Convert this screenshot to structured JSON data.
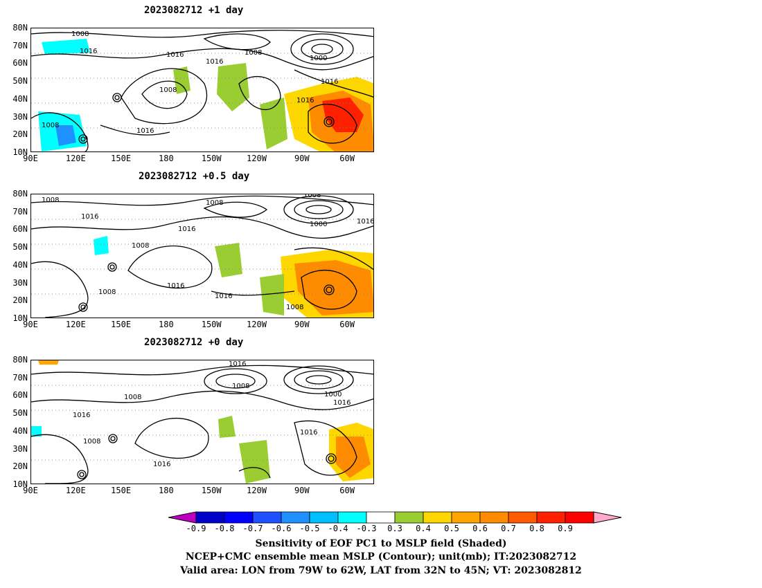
{
  "panels": [
    {
      "title": "2023082712 +1 day"
    },
    {
      "title": "2023082712 +0.5 day"
    },
    {
      "title": "2023082712 +0 day"
    }
  ],
  "axes": {
    "lat_labels": [
      "80N",
      "70N",
      "60N",
      "50N",
      "40N",
      "30N",
      "20N",
      "10N"
    ],
    "lon_labels": [
      "90E",
      "120E",
      "150E",
      "180",
      "150W",
      "120W",
      "90W",
      "60W"
    ]
  },
  "contour_labels": {
    "panel0": [
      "1008",
      "1016",
      "1016",
      "1008",
      "1016",
      "1000",
      "1016",
      "1016",
      "1008",
      "1016",
      "1008"
    ],
    "panel1": [
      "1008",
      "1016",
      "1008",
      "1008",
      "1016",
      "1000",
      "1016",
      "1016",
      "1016",
      "1008",
      "1008",
      "1008"
    ],
    "panel2": [
      "1016",
      "1008",
      "1008",
      "1000",
      "1016",
      "1016",
      "1016",
      "1008",
      "1016"
    ]
  },
  "colorbar": {
    "labels": [
      "-0.9",
      "-0.8",
      "-0.7",
      "-0.6",
      "-0.5",
      "-0.4",
      "-0.3",
      "0.3",
      "0.4",
      "0.5",
      "0.6",
      "0.7",
      "0.8",
      "0.9"
    ],
    "colors": [
      "#c000c0",
      "#0000c8",
      "#0000ff",
      "#1e50ff",
      "#1e90ff",
      "#00bfff",
      "#00ffff",
      "#ffffff",
      "#9acd32",
      "#ffd700",
      "#ffa500",
      "#ff8c00",
      "#ff5a00",
      "#ff2000",
      "#ff0000",
      "#ffaacc"
    ]
  },
  "footer": {
    "line1": "Sensitivity of EOF PC1 to MSLP field (Shaded)",
    "line2": "NCEP+CMC ensemble mean MSLP (Contour); unit(mb); IT:2023082712",
    "line3": "Valid area: LON from 79W to 62W, LAT from 32N to 45N; VT: 2023082812"
  }
}
